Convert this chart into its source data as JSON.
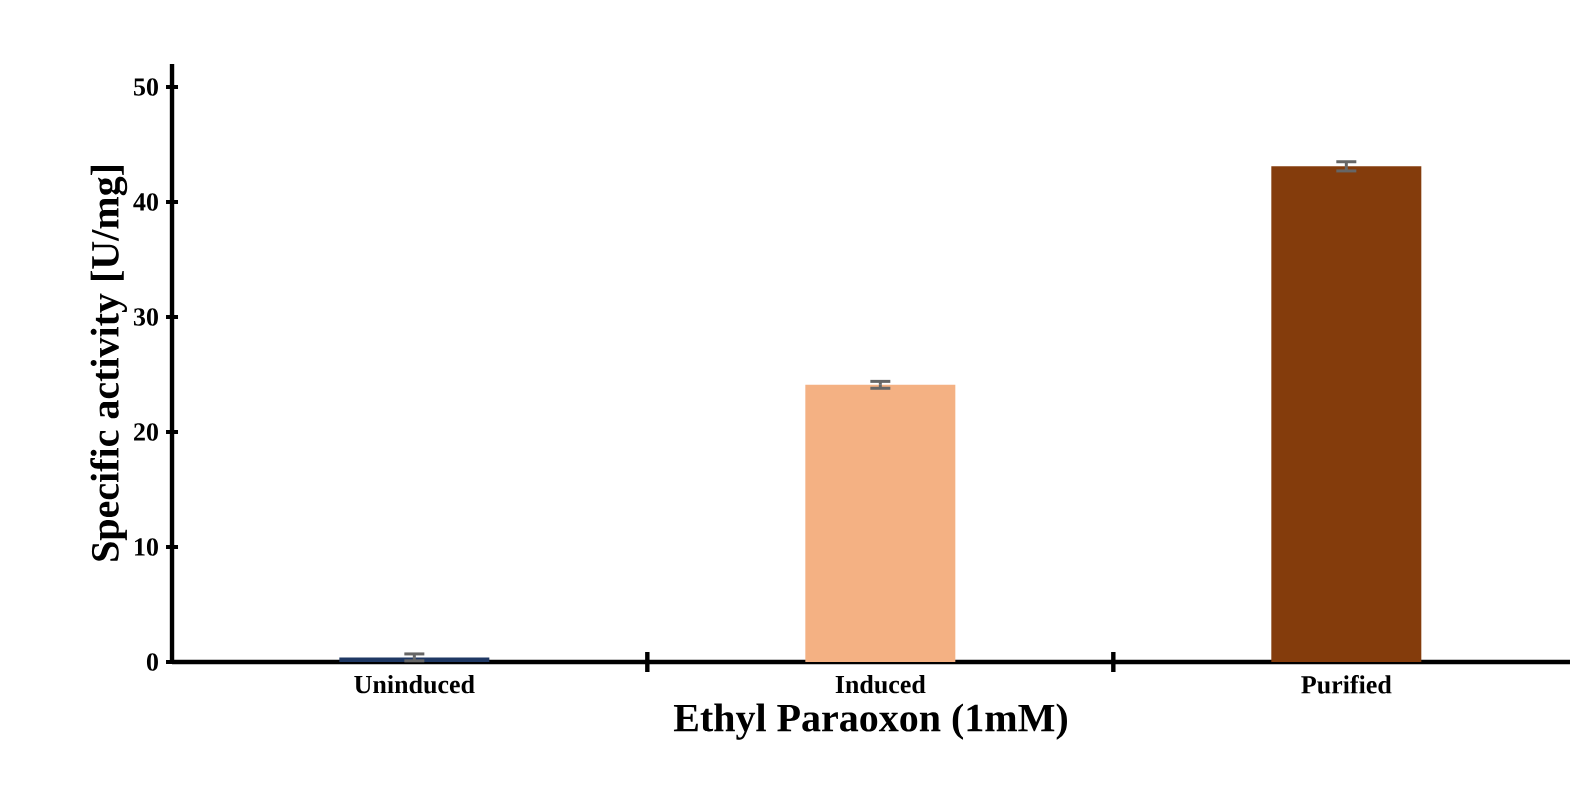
{
  "chart_data": {
    "type": "bar",
    "xlabel": "Ethyl Paraoxon (1mM)",
    "ylabel": "Specific activity [U/mg]",
    "categories": [
      "Uninduced",
      "Induced",
      "Purified"
    ],
    "values": [
      0.4,
      24.1,
      43.1
    ],
    "colors": [
      "#1f3864",
      "#f4b183",
      "#843c0c"
    ],
    "errors": [
      0.3,
      0.3,
      0.4
    ],
    "ylim": [
      0,
      52
    ],
    "yticks": [
      0,
      10,
      20,
      30,
      40,
      50
    ],
    "grid": false
  }
}
